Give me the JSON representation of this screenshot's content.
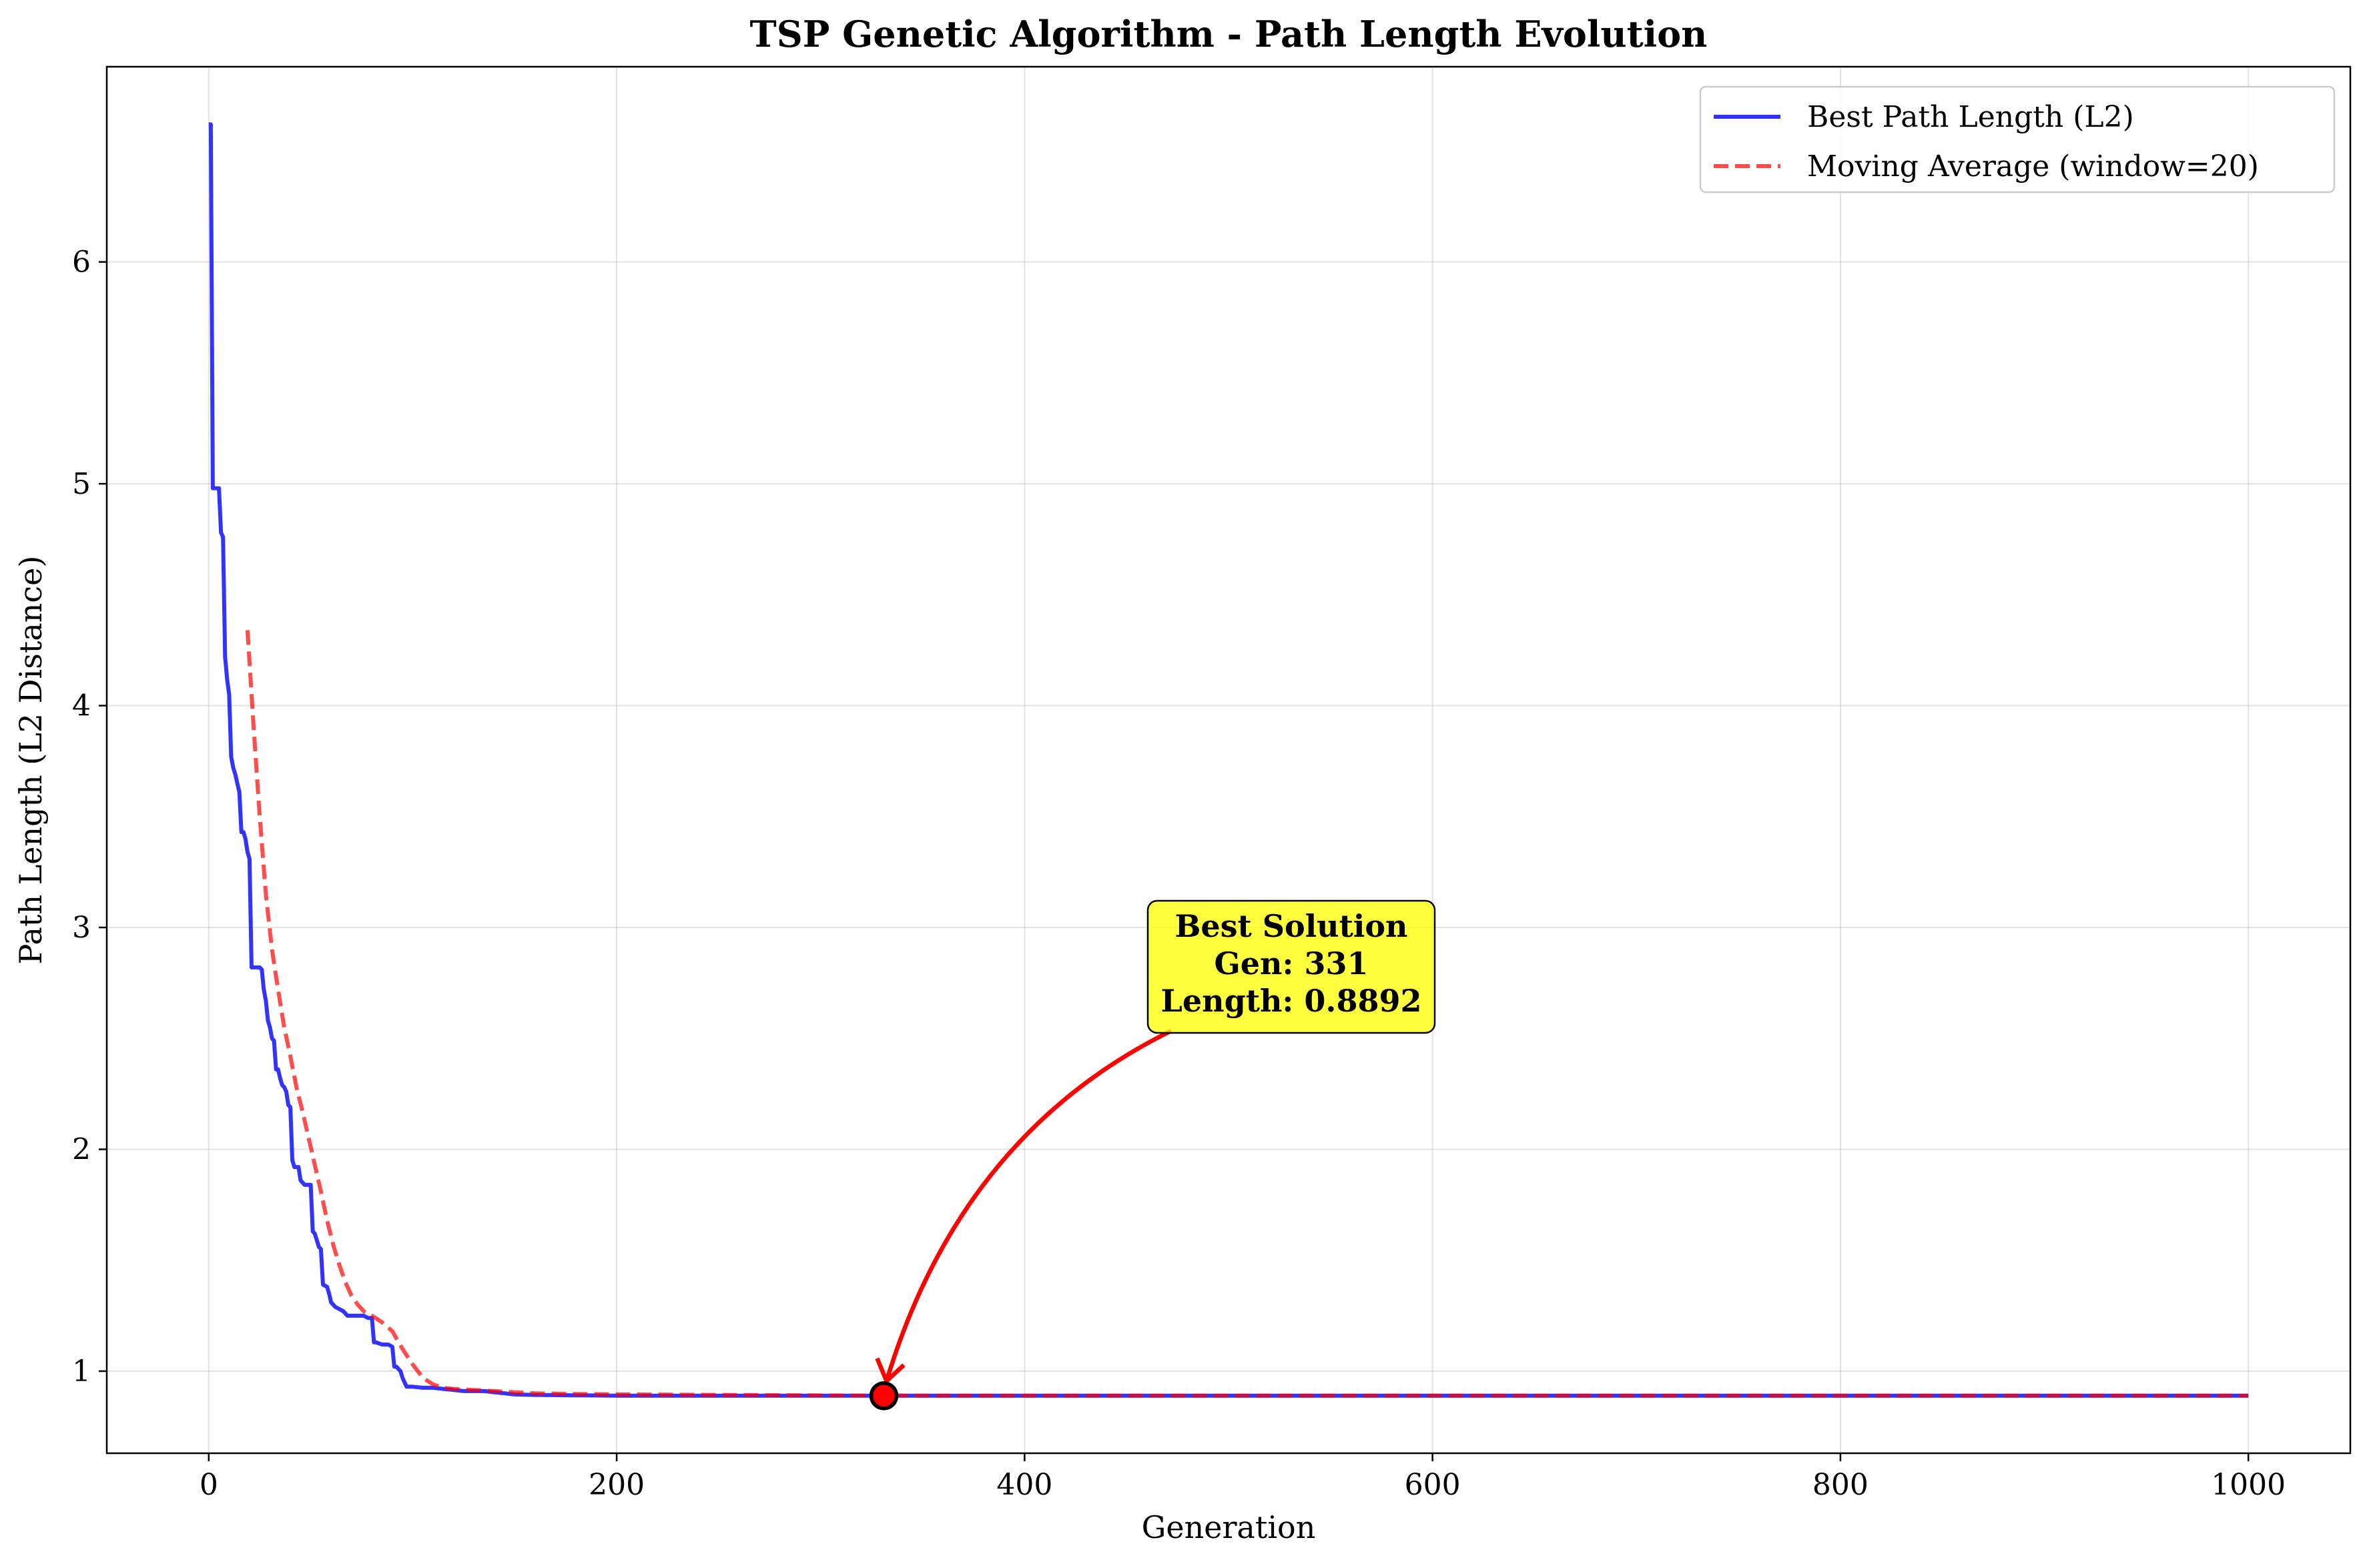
{
  "chart_data": {
    "type": "line",
    "title": "TSP Genetic Algorithm - Path Length Evolution",
    "xlabel": "Generation",
    "ylabel": "Path Length (L2 Distance)",
    "xlim": [
      -50,
      1050
    ],
    "ylim": [
      0.63,
      6.88
    ],
    "x_ticks": [
      0,
      200,
      400,
      600,
      800,
      1000
    ],
    "y_ticks": [
      1,
      2,
      3,
      4,
      5,
      6
    ],
    "grid": true,
    "legend_position": "top-right",
    "series": [
      {
        "name": "Best Path Length (L2)",
        "color": "#0000ff",
        "style": "solid",
        "x": [
          0,
          1,
          2,
          5,
          6,
          7,
          8,
          9,
          10,
          11,
          12,
          13,
          14,
          15,
          16,
          17,
          18,
          19,
          20,
          21,
          22,
          25,
          26,
          27,
          28,
          29,
          30,
          31,
          32,
          33,
          34,
          35,
          36,
          37,
          38,
          39,
          40,
          41,
          42,
          43,
          44,
          45,
          47,
          48,
          50,
          51,
          52,
          53,
          54,
          55,
          56,
          58,
          59,
          60,
          62,
          64,
          66,
          68,
          70,
          72,
          74,
          76,
          78,
          80,
          81,
          82,
          85,
          88,
          90,
          91,
          92,
          94,
          95,
          96,
          97,
          98,
          100,
          105,
          110,
          115,
          120,
          125,
          130,
          135,
          140,
          145,
          150,
          160,
          180,
          200,
          250,
          300,
          331,
          400,
          500,
          600,
          700,
          800,
          900,
          1000
        ],
        "values": [
          6.62,
          6.62,
          4.98,
          4.98,
          4.78,
          4.76,
          4.22,
          4.12,
          4.05,
          3.77,
          3.72,
          3.69,
          3.65,
          3.61,
          3.43,
          3.43,
          3.4,
          3.34,
          3.31,
          2.82,
          2.82,
          2.82,
          2.81,
          2.72,
          2.67,
          2.58,
          2.55,
          2.5,
          2.49,
          2.36,
          2.36,
          2.32,
          2.29,
          2.28,
          2.26,
          2.2,
          2.19,
          1.95,
          1.92,
          1.92,
          1.92,
          1.86,
          1.84,
          1.84,
          1.84,
          1.63,
          1.62,
          1.59,
          1.56,
          1.55,
          1.39,
          1.38,
          1.35,
          1.31,
          1.29,
          1.28,
          1.27,
          1.25,
          1.25,
          1.25,
          1.25,
          1.25,
          1.24,
          1.24,
          1.13,
          1.13,
          1.12,
          1.12,
          1.11,
          1.02,
          1.02,
          1.0,
          0.97,
          0.95,
          0.93,
          0.93,
          0.93,
          0.925,
          0.925,
          0.92,
          0.915,
          0.91,
          0.91,
          0.91,
          0.905,
          0.9,
          0.895,
          0.893,
          0.891,
          0.8895,
          0.8894,
          0.8893,
          0.8892,
          0.8892,
          0.8892,
          0.8892,
          0.8892,
          0.8892,
          0.8892,
          0.8892
        ]
      },
      {
        "name": "Moving Average (window=20)",
        "color": "#ff0000",
        "style": "dashed",
        "x": [
          19,
          22,
          25,
          28,
          31,
          34,
          37,
          40,
          43,
          46,
          49,
          52,
          55,
          58,
          61,
          64,
          67,
          70,
          73,
          76,
          80,
          85,
          90,
          95,
          100,
          105,
          110,
          115,
          120,
          130,
          140,
          150,
          160,
          180,
          200,
          250,
          300,
          350,
          400,
          500,
          600,
          700,
          800,
          900,
          1000
        ],
        "values": [
          4.34,
          3.9,
          3.5,
          3.15,
          2.9,
          2.72,
          2.55,
          2.42,
          2.28,
          2.17,
          2.05,
          1.93,
          1.81,
          1.68,
          1.57,
          1.48,
          1.4,
          1.34,
          1.3,
          1.27,
          1.25,
          1.22,
          1.18,
          1.1,
          1.03,
          0.97,
          0.94,
          0.925,
          0.92,
          0.915,
          0.91,
          0.905,
          0.9,
          0.897,
          0.895,
          0.893,
          0.8905,
          0.8895,
          0.8893,
          0.8892,
          0.8892,
          0.8892,
          0.8892,
          0.8892,
          0.8892
        ]
      }
    ],
    "best_point": {
      "x": 331,
      "y": 0.8892,
      "color": "#ff0000"
    },
    "annotation": {
      "lines": [
        "Best Solution",
        "Gen: 331",
        "Length: 0.8892"
      ],
      "background": "#ffff00"
    }
  }
}
